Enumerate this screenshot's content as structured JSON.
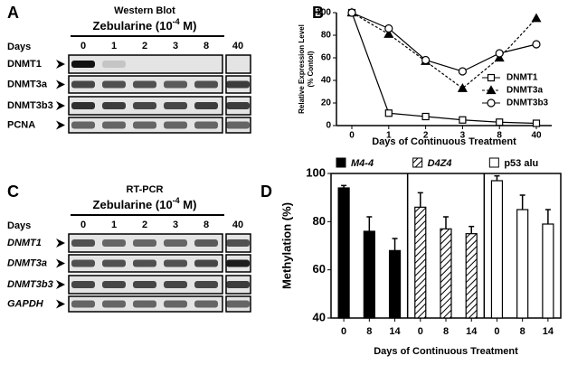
{
  "panel_labels": [
    "A",
    "B",
    "C",
    "D"
  ],
  "blots": [
    {
      "title": "Western Blot",
      "treatment": [
        "Zebularine (10",
        "-4",
        " M)"
      ],
      "days_label": "Days",
      "lanes": [
        "0",
        "1",
        "2",
        "3",
        "8",
        "40"
      ],
      "rows": [
        "DNMT1",
        "DNMT3a",
        "DNMT3b3",
        "PCNA"
      ],
      "italic_rows": false
    },
    {
      "title": "RT-PCR",
      "treatment": [
        "Zebularine (10",
        "-4",
        " M)"
      ],
      "days_label": "Days",
      "lanes": [
        "0",
        "1",
        "2",
        "3",
        "8",
        "40"
      ],
      "rows": [
        "DNMT1",
        "DNMT3a",
        "DNMT3b3",
        "GAPDH"
      ],
      "italic_rows": true
    }
  ],
  "chart_data": [
    {
      "type": "line",
      "ylabel": [
        "Relative Expression Level",
        "(% Contol)"
      ],
      "xlabel": "Days of Continuous Treatment",
      "categories": [
        "0",
        "1",
        "2",
        "3",
        "8",
        "40"
      ],
      "ylim": [
        0,
        100
      ],
      "yticks": [
        0,
        20,
        40,
        60,
        80,
        100
      ],
      "series": [
        {
          "name": "DNMT1",
          "color": "#000000",
          "marker": "square",
          "marker_fill": "#ffffff",
          "dashed": false,
          "values": [
            100,
            11,
            8,
            5,
            3,
            2
          ]
        },
        {
          "name": "DNMT3a",
          "color": "#000000",
          "marker": "triangle",
          "marker_fill": "#000000",
          "dashed": true,
          "values": [
            100,
            81,
            57,
            33,
            60,
            95
          ]
        },
        {
          "name": "DNMT3b3",
          "color": "#000000",
          "marker": "circle",
          "marker_fill": "#ffffff",
          "dashed": false,
          "values": [
            100,
            86,
            58,
            48,
            64,
            72
          ]
        }
      ]
    },
    {
      "type": "bar",
      "ylabel": "Methylation (%)",
      "xlabel": "Days of Continuous Treatment",
      "categories": [
        "0",
        "8",
        "14"
      ],
      "ylim": [
        40,
        100
      ],
      "yticks": [
        40,
        60,
        80,
        100
      ],
      "series": [
        {
          "name": "M4-4",
          "color": "#000000",
          "hatch": false,
          "italic": true,
          "values": [
            94,
            76,
            68
          ],
          "errors": [
            1,
            6,
            5
          ]
        },
        {
          "name": "D4Z4",
          "color": "#ffffff",
          "hatch": true,
          "italic": true,
          "values": [
            86,
            77,
            75
          ],
          "errors": [
            6,
            5,
            3
          ]
        },
        {
          "name": "p53 alu",
          "color": "#ffffff",
          "hatch": false,
          "italic": false,
          "values": [
            97,
            85,
            79
          ],
          "errors": [
            2,
            6,
            6
          ]
        }
      ]
    }
  ]
}
